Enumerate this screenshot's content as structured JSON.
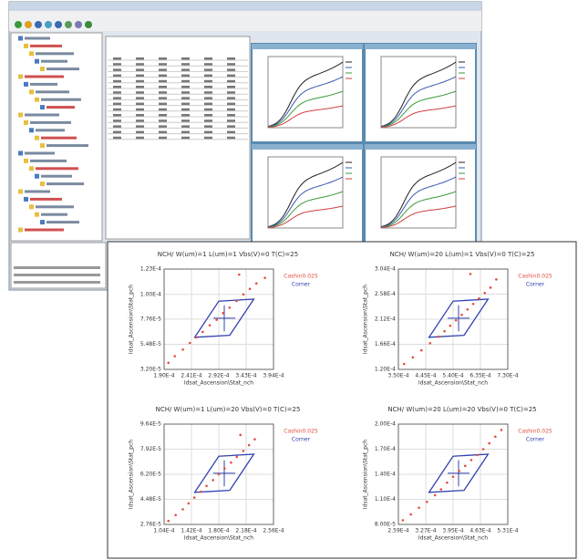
{
  "plots": [
    {
      "type": "scatter",
      "title": "NCH/ W(um)=1 L(um)=1 Vbs(V)=0 T(C)=25",
      "x_label": "Idsat_Ascension\\Stat_nch",
      "y_label": "Idsat_Ascension\\Stat_pch",
      "legend": [
        "Cashin0.025",
        "Corner"
      ],
      "xlim": [
        0.00019,
        0.000394
      ],
      "ylim": [
        3.2e-05,
        0.000123
      ],
      "xticks": [
        {
          "value": 0.00019,
          "label": "1.90E-4"
        },
        {
          "value": 0.000241,
          "label": "2.41E-4"
        },
        {
          "value": 0.000292,
          "label": "2.92E-4"
        },
        {
          "value": 0.000343,
          "label": "3.43E-4"
        },
        {
          "value": 0.000394,
          "label": "3.94E-4"
        }
      ],
      "yticks": [
        {
          "value": 3.2e-05,
          "label": "3.20E-5"
        },
        {
          "value": 5.48e-05,
          "label": "5.48E-5"
        },
        {
          "value": 7.76e-05,
          "label": "7.76E-5"
        },
        {
          "value": 0.0001,
          "label": "1.00E-4"
        },
        {
          "value": 0.000123,
          "label": "1.23E-4"
        }
      ],
      "x": [
        0.000198,
        0.00021,
        0.000225,
        0.000238,
        0.00025,
        0.000262,
        0.000275,
        0.000288,
        0.0003,
        0.000312,
        0.000325,
        0.000338,
        0.00035,
        0.000362,
        0.000378,
        0.00033
      ],
      "y": [
        3.8e-05,
        4.4e-05,
        5e-05,
        5.6e-05,
        6.1e-05,
        6.6e-05,
        7.2e-05,
        7.7e-05,
        8.3e-05,
        8.8e-05,
        9.4e-05,
        0.0001,
        0.000105,
        0.00011,
        0.000115,
        0.000118
      ]
    },
    {
      "type": "scatter",
      "title": "NCH/ W(um)=20 L(um)=1 Vbs(V)=0 T(C)=25",
      "x_label": "Idsat_Ascension\\Stat_nch",
      "y_label": "Idsat_Ascension\\Stat_pch",
      "legend": [
        "Cashin0.025",
        "Corner"
      ],
      "xlim": [
        0.00035,
        0.00073
      ],
      "ylim": [
        0.00012,
        0.000304
      ],
      "xticks": [
        {
          "value": 0.00035,
          "label": "3.50E-4"
        },
        {
          "value": 0.000445,
          "label": "4.45E-4"
        },
        {
          "value": 0.00054,
          "label": "5.40E-4"
        },
        {
          "value": 0.000635,
          "label": "6.35E-4"
        },
        {
          "value": 0.00073,
          "label": "7.30E-4"
        }
      ],
      "yticks": [
        {
          "value": 0.00012,
          "label": "1.20E-4"
        },
        {
          "value": 0.000166,
          "label": "1.66E-4"
        },
        {
          "value": 0.000212,
          "label": "2.12E-4"
        },
        {
          "value": 0.000258,
          "label": "2.58E-4"
        },
        {
          "value": 0.000304,
          "label": "3.04E-4"
        }
      ],
      "x": [
        0.00037,
        0.0004,
        0.00043,
        0.00046,
        0.00049,
        0.00051,
        0.00053,
        0.00055,
        0.00057,
        0.00059,
        0.00061,
        0.00063,
        0.00065,
        0.00067,
        0.00069,
        0.0006
      ],
      "y": [
        0.00013,
        0.000142,
        0.000155,
        0.000168,
        0.00018,
        0.00019,
        0.0002,
        0.00021,
        0.00022,
        0.00023,
        0.00024,
        0.00025,
        0.00026,
        0.00027,
        0.000285,
        0.000295
      ]
    },
    {
      "type": "scatter",
      "title": "NCH/ W(um)=1 L(um)=20 Vbs(V)=0 T(C)=25",
      "x_label": "Idsat_Ascension\\Stat_nch",
      "y_label": "Idsat_Ascension\\Stat_pch",
      "legend": [
        "Cashin0.025",
        "Corner"
      ],
      "xlim": [
        0.000104,
        0.000256
      ],
      "ylim": [
        2.76e-05,
        9.64e-05
      ],
      "xticks": [
        {
          "value": 0.000104,
          "label": "1.04E-4"
        },
        {
          "value": 0.000142,
          "label": "1.42E-4"
        },
        {
          "value": 0.00018,
          "label": "1.80E-4"
        },
        {
          "value": 0.000218,
          "label": "2.18E-4"
        },
        {
          "value": 0.000256,
          "label": "2.56E-4"
        }
      ],
      "yticks": [
        {
          "value": 2.76e-05,
          "label": "2.76E-5"
        },
        {
          "value": 4.48e-05,
          "label": "4.48E-5"
        },
        {
          "value": 6.2e-05,
          "label": "6.20E-5"
        },
        {
          "value": 7.92e-05,
          "label": "7.92E-5"
        },
        {
          "value": 9.64e-05,
          "label": "9.64E-5"
        }
      ],
      "x": [
        0.00011,
        0.00012,
        0.00013,
        0.000138,
        0.000146,
        0.000155,
        0.000163,
        0.000172,
        0.00018,
        0.000188,
        0.000197,
        0.000205,
        0.000214,
        0.000222,
        0.00023,
        0.00021
      ],
      "y": [
        3e-05,
        3.4e-05,
        3.8e-05,
        4.2e-05,
        4.6e-05,
        5e-05,
        5.4e-05,
        5.8e-05,
        6.2e-05,
        6.6e-05,
        7e-05,
        7.4e-05,
        7.8e-05,
        8.2e-05,
        8.6e-05,
        8.9e-05
      ]
    },
    {
      "type": "scatter",
      "title": "NCH/ W(um)=20 L(um)=20 Vbs(V)=0 T(C)=25",
      "x_label": "Idsat_Ascension\\Stat_nch",
      "y_label": "Idsat_Ascension\\Stat_pch",
      "legend": [
        "Cashin0.025",
        "Corner"
      ],
      "xlim": [
        0.000259,
        0.000531
      ],
      "ylim": [
        8e-05,
        0.0002
      ],
      "xticks": [
        {
          "value": 0.000259,
          "label": "2.59E-4"
        },
        {
          "value": 0.000327,
          "label": "3.27E-4"
        },
        {
          "value": 0.000395,
          "label": "3.95E-4"
        },
        {
          "value": 0.000463,
          "label": "4.63E-4"
        },
        {
          "value": 0.000531,
          "label": "5.31E-4"
        }
      ],
      "yticks": [
        {
          "value": 8e-05,
          "label": "8.00E-5"
        },
        {
          "value": 0.00011,
          "label": "1.10E-4"
        },
        {
          "value": 0.00014,
          "label": "1.40E-4"
        },
        {
          "value": 0.00017,
          "label": "1.70E-4"
        },
        {
          "value": 0.0002,
          "label": "2.00E-4"
        }
      ],
      "x": [
        0.00027,
        0.00029,
        0.00031,
        0.00033,
        0.00035,
        0.000365,
        0.00038,
        0.000395,
        0.00041,
        0.000425,
        0.00044,
        0.000455,
        0.00047,
        0.000485,
        0.0005,
        0.000515
      ],
      "y": [
        8.5e-05,
        9.2e-05,
        0.0001,
        0.000107,
        0.000115,
        0.000122,
        0.00013,
        0.000137,
        0.000144,
        0.00015,
        0.000157,
        0.000163,
        0.00017,
        0.000177,
        0.000185,
        0.000193
      ]
    }
  ]
}
